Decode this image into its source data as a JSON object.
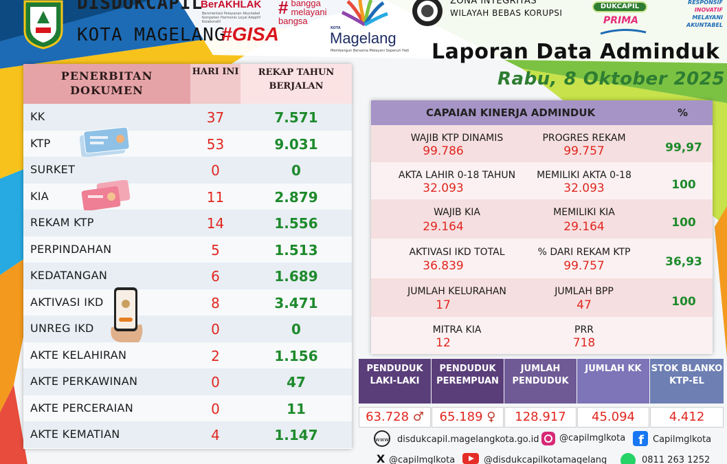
{
  "header": {
    "org_line1": "DISDUKCAPIL",
    "org_line2": "KOTA MAGELANG",
    "gisa": "#GISA",
    "berakhlak": "BerAKHLAK",
    "berakhlak_sub": "Berorientasi Pelayanan Akuntabel Kompeten Harmonis Loyal Adaptif Kolaboratif",
    "bangga": "bangga melayani bangsa",
    "magelang_kota": "KOTA",
    "magelang": "Magelang",
    "magelang_sub": "Membangun Bersama Melayani Sepenuh Hati",
    "zona_line1": "ZONA INTEGRITAS",
    "zona_line2": "WILAYAH BEBAS KORUPSI",
    "dukcapil": "DUKCAPIL",
    "prima": "PRIMA",
    "motto": [
      "RESPONSIF",
      "INOVATIF",
      "MELAYANI",
      "AKUNTABEL"
    ],
    "title": "Laporan Data Adminduk",
    "date": "Rabu, 8 Oktober 2025"
  },
  "left_table": {
    "col1": "PENERBITAN DOKUMEN",
    "col2": "HARI INI",
    "col3": "REKAP TAHUN BERJALAN",
    "rows": [
      {
        "name": "KK",
        "today": "37",
        "year": "7.571"
      },
      {
        "name": "KTP",
        "today": "53",
        "year": "9.031"
      },
      {
        "name": "SURKET",
        "today": "0",
        "year": "0"
      },
      {
        "name": "KIA",
        "today": "11",
        "year": "2.879"
      },
      {
        "name": "REKAM KTP",
        "today": "14",
        "year": "1.556"
      },
      {
        "name": "PERPINDAHAN",
        "today": "5",
        "year": "1.513"
      },
      {
        "name": "KEDATANGAN",
        "today": "6",
        "year": "1.689"
      },
      {
        "name": "AKTIVASI IKD",
        "today": "8",
        "year": "3.471"
      },
      {
        "name": "UNREG IKD",
        "today": "0",
        "year": "0"
      },
      {
        "name": "AKTE KELAHIRAN",
        "today": "2",
        "year": "1.156"
      },
      {
        "name": "AKTE PERKAWINAN",
        "today": "0",
        "year": "47"
      },
      {
        "name": "AKTE PERCERAIAN",
        "today": "0",
        "year": "11"
      },
      {
        "name": "AKTE KEMATIAN",
        "today": "4",
        "year": "1.147"
      }
    ]
  },
  "capaian": {
    "title": "CAPAIAN KINERJA ADMINDUK",
    "pct_header": "%",
    "rows": [
      {
        "l1": "WAJIB KTP DINAMIS",
        "v1": "99.786",
        "l2": "PROGRES REKAM",
        "v2": "99.757",
        "pct": "99,97"
      },
      {
        "l1": "AKTA LAHIR 0-18 TAHUN",
        "v1": "32.093",
        "l2": "MEMILIKI AKTA 0-18",
        "v2": "32.093",
        "pct": "100"
      },
      {
        "l1": "WAJIB KIA",
        "v1": "29.164",
        "l2": "MEMILIKI KIA",
        "v2": "29.164",
        "pct": "100"
      },
      {
        "l1": "AKTIVASI IKD TOTAL",
        "v1": "36.839",
        "l2": "% DARI REKAM KTP",
        "v2": "99.757",
        "pct": "36,93"
      },
      {
        "l1": "JUMLAH KELURAHAN",
        "v1": "17",
        "l2": "JUMLAH BPP",
        "v2": "47",
        "pct": "100"
      },
      {
        "l1": "MITRA KIA",
        "v1": "12",
        "l2": "PRR",
        "v2": "718",
        "pct": ""
      }
    ]
  },
  "population": [
    {
      "label": "PENDUDUK LAKI-LAKI",
      "value": "63.728",
      "color": "#5a3e7a"
    },
    {
      "label": "PENDUDUK PEREMPUAN",
      "value": "65.189",
      "color": "#5a3e7a"
    },
    {
      "label": "JUMLAH PENDUDUK",
      "value": "128.917",
      "color": "#6f5a96"
    },
    {
      "label": "JUMLAH KK",
      "value": "45.094",
      "color": "#7e74b8"
    },
    {
      "label": "STOK BLANKO KTP-EL",
      "value": "4.412",
      "color": "#6d7fb3"
    }
  ],
  "footer": {
    "website": "disdukcapil.magelangkota.go.id",
    "instagram": "@capilmglkota",
    "facebook": "Capilmglkota",
    "x": "@capilmglkota",
    "youtube": "@disdukcapilkotamagelang",
    "whatsapp": "0811 263 1252"
  }
}
